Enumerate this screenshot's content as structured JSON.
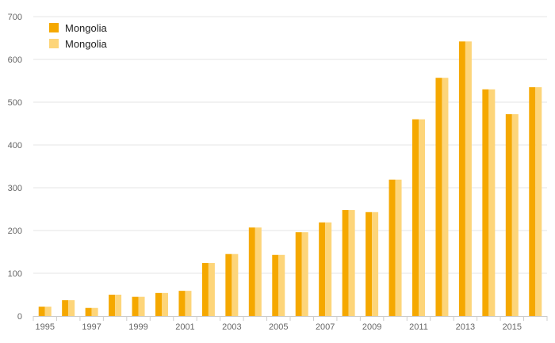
{
  "chart_data": {
    "type": "bar",
    "title": "",
    "xlabel": "",
    "ylabel": "",
    "ylim": [
      0,
      700
    ],
    "yticks": [
      0,
      100,
      200,
      300,
      400,
      500,
      600,
      700
    ],
    "grid": true,
    "legend_position": "top-left",
    "categories": [
      "1995",
      "1996",
      "1997",
      "1998",
      "1999",
      "2000",
      "2001",
      "2002",
      "2003",
      "2004",
      "2005",
      "2006",
      "2007",
      "2008",
      "2009",
      "2010",
      "2011",
      "2012",
      "2013",
      "2014",
      "2015",
      "2016"
    ],
    "xtick_labels": [
      "1995",
      "",
      "1997",
      "",
      "1999",
      "",
      "2001",
      "",
      "2003",
      "",
      "2005",
      "",
      "2007",
      "",
      "2009",
      "",
      "2011",
      "",
      "2013",
      "",
      "2015",
      ""
    ],
    "series": [
      {
        "name": "Mongolia",
        "color": "#f5a800",
        "values": [
          22,
          37,
          19,
          50,
          45,
          54,
          59,
          124,
          145,
          207,
          143,
          196,
          219,
          248,
          243,
          319,
          460,
          557,
          642,
          530,
          472,
          535
        ]
      },
      {
        "name": "Mongolia",
        "color": "#fdd57a",
        "values": [
          22,
          37,
          19,
          50,
          45,
          54,
          59,
          124,
          145,
          207,
          143,
          196,
          219,
          248,
          243,
          319,
          460,
          557,
          642,
          530,
          472,
          535
        ]
      }
    ]
  }
}
